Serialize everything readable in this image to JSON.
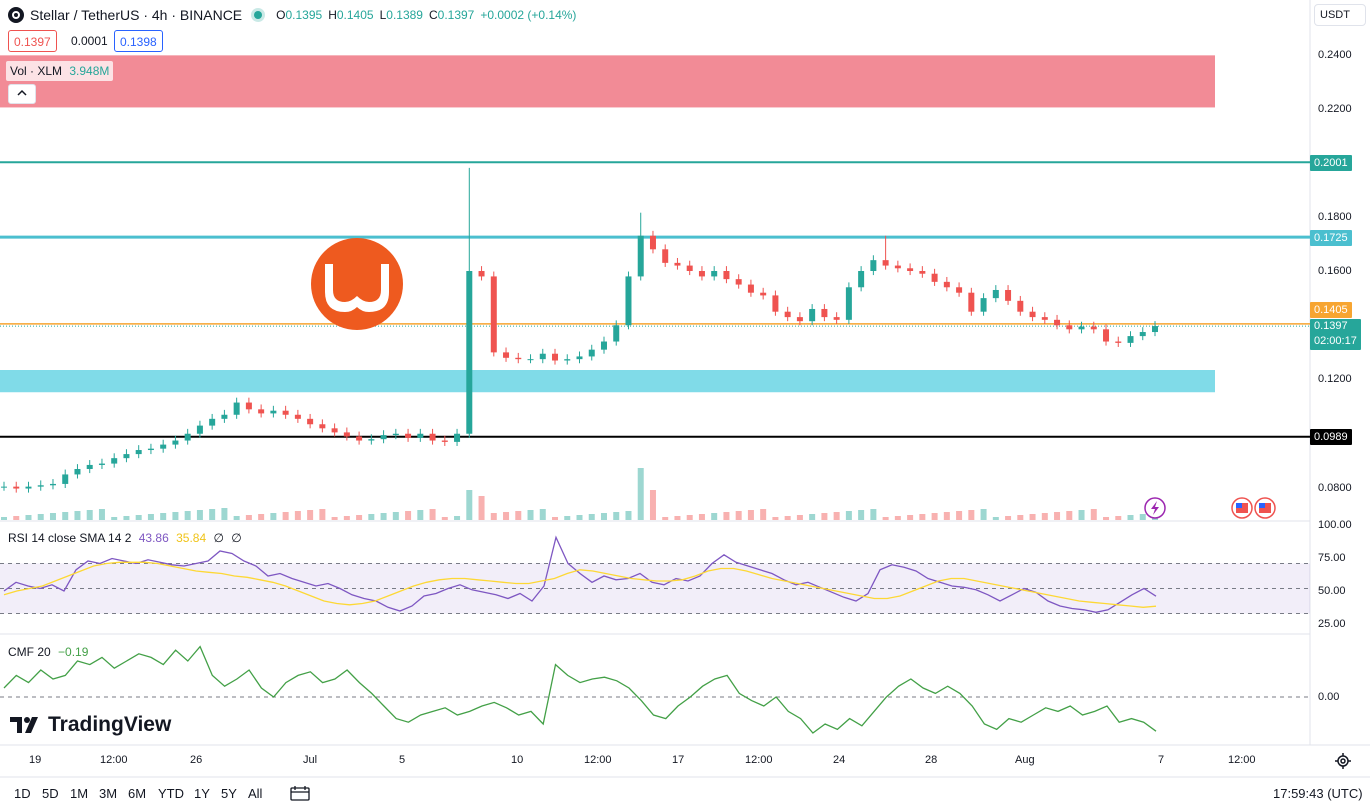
{
  "header": {
    "symbol": "Stellar / TetherUS · 4h · BINANCE",
    "o_label": "O",
    "o_value": "0.1395",
    "h_label": "H",
    "h_value": "0.1405",
    "l_label": "L",
    "l_value": "0.1389",
    "c_label": "C",
    "c_value": "0.1397",
    "change": "+0.0002 (+0.14%)"
  },
  "bid": "0.1397",
  "spread": "0.0001",
  "ask": "0.1398",
  "volume_label": "Vol · XLM",
  "volume_value": "3.948M",
  "collapse_icon": "chevron-up-icon",
  "currency_selector": "USDT",
  "price_axis": [
    "0.2400",
    "0.2200",
    "0.1800",
    "0.1600",
    "0.1200",
    "0.0800"
  ],
  "price_tags": {
    "resistance_high": "0.2001",
    "resistance_mid": "0.1725",
    "day_high": "0.1405",
    "last_price": "0.1397",
    "countdown": "02:00:17",
    "support": "0.0989"
  },
  "rsi": {
    "label": "RSI 14 close SMA 14 2",
    "value": "43.86",
    "sma_value": "35.84",
    "extra1": "∅",
    "extra2": "∅",
    "axis": [
      "100.00",
      "75.00",
      "50.00",
      "25.00"
    ]
  },
  "cmf": {
    "label": "CMF 20",
    "value": "−0.19",
    "axis": [
      "0.00"
    ]
  },
  "time_axis": [
    "19",
    "12:00",
    "26",
    "Jul",
    "5",
    "10",
    "12:00",
    "17",
    "12:00",
    "24",
    "28",
    "Aug",
    "7",
    "12:00"
  ],
  "watermark": "TradingView",
  "timeframes": [
    "1D",
    "5D",
    "1M",
    "3M",
    "6M",
    "YTD",
    "1Y",
    "5Y",
    "All"
  ],
  "clock": "17:59:43 (UTC)",
  "colors": {
    "up": "#26a69a",
    "down": "#ef5350",
    "red_zone": "#f28b96",
    "cyan_zone": "#80dbe8",
    "resistance_high": "#26a69a",
    "resistance_mid": "#4bbfcf",
    "day_high": "#f7a531",
    "support": "#000000",
    "rsi": "#7e57c2",
    "rsi_sma": "#fdd835",
    "cmf": "#43a047"
  },
  "icons": {
    "settings": "gear-icon",
    "compare": "calendar-range-icon",
    "event_flash": "flash-icon",
    "flag_us": "us-flag-icon",
    "overlay_logo": "logo-icon"
  },
  "chart_data": [
    {
      "type": "candlestick",
      "title": "Stellar / TetherUS · 4h · BINANCE",
      "xlabel": "",
      "ylabel": "",
      "ylim": [
        0.07,
        0.245
      ],
      "x_ticks": [
        "19",
        "12:00",
        "26",
        "Jul",
        "5",
        "10",
        "12:00",
        "17",
        "12:00",
        "24",
        "28",
        "Aug",
        "7",
        "12:00"
      ],
      "y_ticks": [
        0.24,
        0.22,
        0.18,
        0.16,
        0.12,
        0.08
      ],
      "ohlc_last": {
        "open": 0.1395,
        "high": 0.1405,
        "low": 0.1389,
        "close": 0.1397
      },
      "close_path": [
        0.0805,
        0.0798,
        0.0805,
        0.081,
        0.0815,
        0.085,
        0.087,
        0.0885,
        0.089,
        0.091,
        0.0925,
        0.094,
        0.0945,
        0.096,
        0.0975,
        0.1,
        0.103,
        0.1055,
        0.107,
        0.1115,
        0.109,
        0.1075,
        0.1085,
        0.107,
        0.1055,
        0.1035,
        0.102,
        0.1005,
        0.099,
        0.0975,
        0.098,
        0.0995,
        0.1,
        0.0985,
        0.1,
        0.0975,
        0.097,
        0.1,
        0.16,
        0.158,
        0.13,
        0.128,
        0.1275,
        0.1275,
        0.1295,
        0.127,
        0.1275,
        0.1285,
        0.131,
        0.134,
        0.14,
        0.158,
        0.173,
        0.168,
        0.163,
        0.162,
        0.16,
        0.158,
        0.16,
        0.157,
        0.155,
        0.152,
        0.151,
        0.145,
        0.143,
        0.1415,
        0.146,
        0.143,
        0.142,
        0.154,
        0.16,
        0.164,
        0.162,
        0.161,
        0.16,
        0.159,
        0.156,
        0.154,
        0.152,
        0.145,
        0.15,
        0.153,
        0.149,
        0.145,
        0.143,
        0.142,
        0.14,
        0.1385,
        0.1395,
        0.1385,
        0.134,
        0.1335,
        0.136,
        0.1375,
        0.1397
      ],
      "zones": [
        {
          "name": "red supply zone",
          "from": 0.2203,
          "to": 0.2395
        },
        {
          "name": "cyan demand zone",
          "from": 0.1153,
          "to": 0.1235
        }
      ],
      "levels": [
        0.2001,
        0.1725,
        0.1405,
        0.1397,
        0.0989
      ],
      "volume_last": "3.948M"
    },
    {
      "type": "line",
      "title": "RSI 14 close SMA 14 2",
      "ylim": [
        20,
        100
      ],
      "y_ticks": [
        100,
        75,
        50,
        25
      ],
      "bands": [
        30,
        50,
        70
      ],
      "series": [
        {
          "name": "RSI",
          "values": [
            48,
            55,
            52,
            50,
            53,
            48,
            65,
            72,
            70,
            74,
            72,
            70,
            73,
            71,
            69,
            68,
            70,
            72,
            80,
            78,
            72,
            68,
            60,
            62,
            58,
            55,
            52,
            54,
            50,
            45,
            42,
            40,
            35,
            32,
            36,
            44,
            46,
            50,
            53,
            49,
            47,
            45,
            42,
            46,
            40,
            52,
            91,
            70,
            62,
            55,
            60,
            57,
            58,
            62,
            55,
            53,
            58,
            56,
            60,
            70,
            77,
            71,
            68,
            65,
            62,
            57,
            53,
            55,
            51,
            47,
            43,
            40,
            46,
            65,
            69,
            67,
            64,
            58,
            55,
            52,
            51,
            49,
            45,
            40,
            45,
            50,
            47,
            40,
            36,
            34,
            33,
            31,
            33,
            39,
            45,
            50,
            43.86
          ]
        },
        {
          "name": "SMA",
          "values": [
            45,
            48,
            50,
            52,
            56,
            60,
            64,
            68,
            70,
            71,
            71,
            71,
            70,
            68,
            66,
            64,
            63,
            62,
            60,
            59,
            57,
            55,
            52,
            48,
            44,
            40,
            38,
            37,
            38,
            40,
            44,
            48,
            52,
            55,
            57,
            58,
            58,
            57,
            56,
            55,
            54,
            54,
            56,
            58,
            62,
            65,
            64,
            62,
            60,
            58,
            57,
            56,
            56,
            57,
            60,
            64,
            66,
            66,
            64,
            61,
            58,
            56,
            54,
            52,
            50,
            48,
            46,
            44,
            42,
            42,
            44,
            48,
            52,
            56,
            58,
            58,
            56,
            54,
            52,
            50,
            48,
            46,
            44,
            42,
            40,
            39,
            38,
            37,
            36,
            35,
            35.84
          ]
        }
      ]
    },
    {
      "type": "line",
      "title": "CMF 20",
      "y_ticks": [
        0.0
      ],
      "ylim": [
        -0.3,
        0.4
      ],
      "series": [
        {
          "name": "CMF",
          "values": [
            0.05,
            0.12,
            0.08,
            0.15,
            0.1,
            0.12,
            0.2,
            0.18,
            0.22,
            0.16,
            0.2,
            0.24,
            0.22,
            0.18,
            0.26,
            0.2,
            0.28,
            0.12,
            0.06,
            0.1,
            0.15,
            0.05,
            0.0,
            0.08,
            0.12,
            0.14,
            0.08,
            0.1,
            0.15,
            0.08,
            0.02,
            -0.05,
            -0.12,
            -0.14,
            -0.1,
            -0.08,
            -0.06,
            -0.1,
            -0.08,
            -0.05,
            -0.03,
            -0.06,
            -0.1,
            -0.08,
            -0.15,
            0.18,
            0.12,
            0.08,
            0.1,
            0.11,
            0.09,
            0.05,
            -0.02,
            -0.1,
            -0.12,
            -0.05,
            0.0,
            0.06,
            0.1,
            0.12,
            0.02,
            -0.02,
            -0.05,
            0.0,
            -0.08,
            -0.12,
            -0.2,
            -0.15,
            -0.18,
            -0.12,
            -0.16,
            -0.08,
            0.0,
            0.06,
            0.1,
            0.05,
            0.02,
            0.06,
            0.02,
            -0.05,
            -0.15,
            -0.18,
            -0.12,
            -0.14,
            -0.1,
            -0.06,
            -0.08,
            -0.05,
            -0.1,
            -0.08,
            -0.05,
            -0.14,
            -0.12,
            -0.14,
            -0.19
          ]
        }
      ]
    }
  ]
}
